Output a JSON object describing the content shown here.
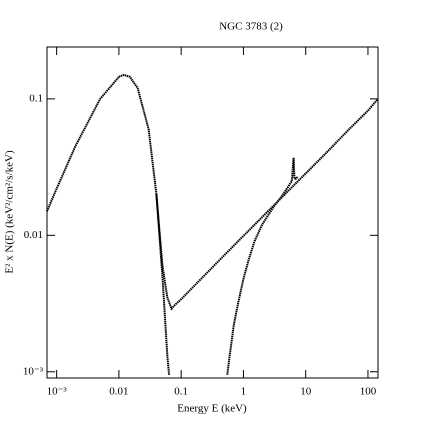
{
  "chart_data": {
    "type": "line",
    "title": "NGC 3783 (2)",
    "x_label": "Energy E (keV)",
    "y_label": "E² x N(E) (keV²/cm²/s/keV)",
    "xscale": "log",
    "yscale": "log",
    "xlim": [
      0.0007,
      145
    ],
    "ylim": [
      0.0009,
      0.24
    ],
    "xticks": [
      {
        "value": 0.001,
        "label": "10⁻³"
      },
      0.01,
      0.1,
      1,
      10,
      100
    ],
    "yticks": [
      {
        "value": 0.001,
        "label": "10⁻³"
      },
      0.01,
      0.1
    ],
    "series": [
      {
        "color": "#000000",
        "x": [
          0.0007,
          0.001,
          0.002,
          0.005,
          0.01,
          0.012,
          0.015,
          0.02,
          0.03,
          0.04,
          0.05,
          0.06,
          0.064
        ],
        "values": [
          0.015,
          0.022,
          0.045,
          0.1,
          0.145,
          0.15,
          0.145,
          0.12,
          0.06,
          0.02,
          0.005,
          0.0013,
          0.00095
        ]
      },
      {
        "color": "#000000",
        "x": [
          0.04,
          0.05,
          0.06,
          0.07,
          0.08,
          0.1,
          0.2,
          0.5,
          1,
          2,
          5,
          10,
          20,
          50,
          100,
          145
        ],
        "values": [
          0.02,
          0.006,
          0.0035,
          0.0029,
          0.0031,
          0.0034,
          0.0047,
          0.0072,
          0.0099,
          0.0136,
          0.0207,
          0.0284,
          0.039,
          0.06,
          0.082,
          0.1
        ]
      },
      {
        "color": "#000000",
        "x": [
          0.55,
          0.6,
          0.7,
          0.8,
          1,
          1.2,
          1.5,
          2,
          3,
          4,
          5,
          6,
          6.4,
          6.6,
          7,
          7.5
        ],
        "values": [
          0.00095,
          0.0013,
          0.0022,
          0.003,
          0.0048,
          0.0065,
          0.009,
          0.012,
          0.016,
          0.019,
          0.022,
          0.025,
          0.037,
          0.026,
          0.026,
          0.027
        ]
      }
    ]
  }
}
